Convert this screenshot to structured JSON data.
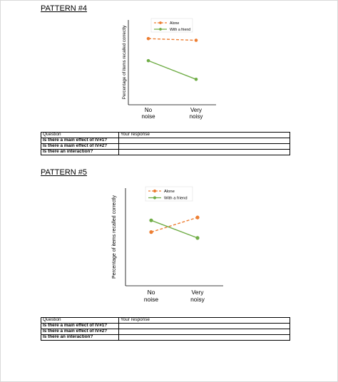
{
  "patterns": [
    {
      "heading": "PATTERN #4",
      "chart_data": {
        "type": "line",
        "categories": [
          "No\nnoise",
          "Very\nnoisy"
        ],
        "ylabel": "Percentage of items recalled correctly",
        "xlabel": "",
        "ylim": [
          0,
          100
        ],
        "grid": false,
        "legend_position": "top",
        "series": [
          {
            "name": "Alone",
            "values": [
              78,
              76
            ],
            "color": "#ED7D31",
            "dash": true
          },
          {
            "name": "With a friend",
            "values": [
              52,
              30
            ],
            "color": "#70AD47",
            "dash": false
          }
        ]
      },
      "table": {
        "header": [
          "Question",
          "Your response"
        ],
        "rows": [
          "Is there a main effect of IV#1?",
          "Is there a main effect of IV#2?",
          "Is there an interaction?"
        ]
      }
    },
    {
      "heading": "PATTERN #5",
      "chart_data": {
        "type": "line",
        "categories": [
          "No\nnoise",
          "Very\nnoisy"
        ],
        "ylabel": "Percentage of items recalled correctly",
        "xlabel": "",
        "ylim": [
          0,
          100
        ],
        "grid": false,
        "legend_position": "top",
        "series": [
          {
            "name": "Alone",
            "values": [
              55,
              70
            ],
            "color": "#ED7D31",
            "dash": true
          },
          {
            "name": "With a friend",
            "values": [
              67,
              49
            ],
            "color": "#70AD47",
            "dash": false
          }
        ]
      },
      "table": {
        "header": [
          "Question",
          "Your response"
        ],
        "rows": [
          "Is there a main effect of IV#1?",
          "Is there a main effect of IV#2?",
          "Is there an interaction?"
        ]
      }
    }
  ]
}
